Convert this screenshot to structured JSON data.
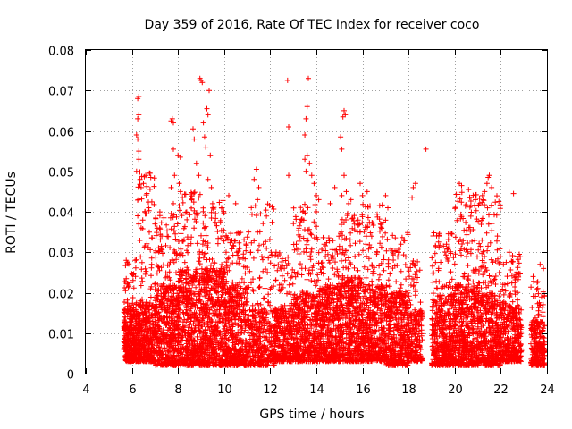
{
  "chart_data": {
    "type": "scatter",
    "title": "Day 359 of 2016, Rate Of TEC Index for receiver coco",
    "xlabel": "GPS time / hours",
    "ylabel": "ROTI / TECUs",
    "xlim": [
      4,
      24
    ],
    "ylim": [
      0,
      0.08
    ],
    "xticks": [
      4,
      6,
      8,
      10,
      12,
      14,
      16,
      18,
      20,
      22,
      24
    ],
    "yticks": [
      0,
      0.01,
      0.02,
      0.03,
      0.04,
      0.05,
      0.06,
      0.07,
      0.08
    ],
    "xtick_labels": [
      "4",
      "6",
      "8",
      "10",
      "12",
      "14",
      "16",
      "18",
      "20",
      "22",
      "24"
    ],
    "ytick_labels": [
      "0",
      "0.01",
      "0.02",
      "0.03",
      "0.04",
      "0.05",
      "0.06",
      "0.07",
      "0.08"
    ],
    "grid": true,
    "marker": "+",
    "color": "#ff0000",
    "series": [
      {
        "name": "ROTI",
        "density_profile": [
          {
            "x_start": 5.65,
            "x_end": 6.2,
            "count": 320,
            "y_min": 0.003,
            "y_bulk": 0.016,
            "y_tail": 0.029
          },
          {
            "x_start": 6.2,
            "x_end": 7.0,
            "count": 420,
            "y_min": 0.003,
            "y_bulk": 0.018,
            "y_tail": 0.05
          },
          {
            "x_start": 7.0,
            "x_end": 8.0,
            "count": 520,
            "y_min": 0.002,
            "y_bulk": 0.022,
            "y_tail": 0.04
          },
          {
            "x_start": 8.0,
            "x_end": 9.0,
            "count": 520,
            "y_min": 0.002,
            "y_bulk": 0.026,
            "y_tail": 0.045
          },
          {
            "x_start": 9.0,
            "x_end": 10.0,
            "count": 520,
            "y_min": 0.002,
            "y_bulk": 0.026,
            "y_tail": 0.043
          },
          {
            "x_start": 10.0,
            "x_end": 11.0,
            "count": 500,
            "y_min": 0.002,
            "y_bulk": 0.022,
            "y_tail": 0.035
          },
          {
            "x_start": 11.0,
            "x_end": 12.2,
            "count": 380,
            "y_min": 0.002,
            "y_bulk": 0.016,
            "y_tail": 0.042
          },
          {
            "x_start": 12.2,
            "x_end": 13.0,
            "count": 330,
            "y_min": 0.003,
            "y_bulk": 0.016,
            "y_tail": 0.03
          },
          {
            "x_start": 13.0,
            "x_end": 14.0,
            "count": 450,
            "y_min": 0.003,
            "y_bulk": 0.02,
            "y_tail": 0.042
          },
          {
            "x_start": 14.0,
            "x_end": 15.0,
            "count": 480,
            "y_min": 0.003,
            "y_bulk": 0.022,
            "y_tail": 0.035
          },
          {
            "x_start": 15.0,
            "x_end": 16.0,
            "count": 500,
            "y_min": 0.003,
            "y_bulk": 0.024,
            "y_tail": 0.04
          },
          {
            "x_start": 16.0,
            "x_end": 17.0,
            "count": 470,
            "y_min": 0.003,
            "y_bulk": 0.022,
            "y_tail": 0.042
          },
          {
            "x_start": 17.0,
            "x_end": 18.0,
            "count": 450,
            "y_min": 0.002,
            "y_bulk": 0.02,
            "y_tail": 0.035
          },
          {
            "x_start": 18.0,
            "x_end": 18.6,
            "count": 200,
            "y_min": 0.003,
            "y_bulk": 0.016,
            "y_tail": 0.028
          },
          {
            "x_start": 19.0,
            "x_end": 20.0,
            "count": 470,
            "y_min": 0.002,
            "y_bulk": 0.02,
            "y_tail": 0.035
          },
          {
            "x_start": 20.0,
            "x_end": 21.0,
            "count": 500,
            "y_min": 0.002,
            "y_bulk": 0.022,
            "y_tail": 0.045
          },
          {
            "x_start": 21.0,
            "x_end": 22.0,
            "count": 480,
            "y_min": 0.002,
            "y_bulk": 0.02,
            "y_tail": 0.045
          },
          {
            "x_start": 22.0,
            "x_end": 22.9,
            "count": 380,
            "y_min": 0.003,
            "y_bulk": 0.017,
            "y_tail": 0.03
          },
          {
            "x_start": 23.3,
            "x_end": 23.9,
            "count": 260,
            "y_min": 0.002,
            "y_bulk": 0.013,
            "y_tail": 0.024
          }
        ],
        "outliers": [
          [
            5.75,
            0.028
          ],
          [
            5.8,
            0.0275
          ],
          [
            5.75,
            0.0235
          ],
          [
            6.25,
            0.068
          ],
          [
            6.3,
            0.0685
          ],
          [
            6.3,
            0.064
          ],
          [
            6.25,
            0.063
          ],
          [
            6.2,
            0.059
          ],
          [
            6.25,
            0.058
          ],
          [
            6.3,
            0.055
          ],
          [
            6.3,
            0.053
          ],
          [
            6.2,
            0.05
          ],
          [
            6.35,
            0.048
          ],
          [
            6.4,
            0.046
          ],
          [
            6.5,
            0.047
          ],
          [
            6.6,
            0.049
          ],
          [
            6.3,
            0.043
          ],
          [
            6.25,
            0.039
          ],
          [
            6.4,
            0.036
          ],
          [
            7.0,
            0.037
          ],
          [
            7.2,
            0.036
          ],
          [
            7.3,
            0.034
          ],
          [
            7.7,
            0.0625
          ],
          [
            7.8,
            0.062
          ],
          [
            7.75,
            0.063
          ],
          [
            7.8,
            0.0555
          ],
          [
            7.85,
            0.049
          ],
          [
            7.7,
            0.046
          ],
          [
            7.8,
            0.042
          ],
          [
            8.0,
            0.054
          ],
          [
            8.1,
            0.0535
          ],
          [
            8.05,
            0.047
          ],
          [
            8.1,
            0.045
          ],
          [
            8.7,
            0.058
          ],
          [
            8.65,
            0.0605
          ],
          [
            8.8,
            0.052
          ],
          [
            8.9,
            0.049
          ],
          [
            8.95,
            0.073
          ],
          [
            9.0,
            0.0725
          ],
          [
            9.05,
            0.072
          ],
          [
            9.1,
            0.062
          ],
          [
            9.15,
            0.0585
          ],
          [
            9.2,
            0.056
          ],
          [
            9.25,
            0.0655
          ],
          [
            9.3,
            0.064
          ],
          [
            9.35,
            0.07
          ],
          [
            9.4,
            0.054
          ],
          [
            9.3,
            0.048
          ],
          [
            9.45,
            0.046
          ],
          [
            9.5,
            0.042
          ],
          [
            10.2,
            0.044
          ],
          [
            10.5,
            0.042
          ],
          [
            11.3,
            0.048
          ],
          [
            11.4,
            0.0505
          ],
          [
            11.5,
            0.046
          ],
          [
            11.45,
            0.043
          ],
          [
            12.75,
            0.0725
          ],
          [
            12.8,
            0.061
          ],
          [
            12.8,
            0.049
          ],
          [
            13.65,
            0.073
          ],
          [
            13.6,
            0.066
          ],
          [
            13.55,
            0.063
          ],
          [
            13.5,
            0.059
          ],
          [
            13.6,
            0.054
          ],
          [
            13.5,
            0.053
          ],
          [
            13.7,
            0.052
          ],
          [
            13.55,
            0.05
          ],
          [
            13.8,
            0.049
          ],
          [
            13.9,
            0.047
          ],
          [
            14.0,
            0.044
          ],
          [
            14.1,
            0.043
          ],
          [
            14.0,
            0.04
          ],
          [
            14.6,
            0.042
          ],
          [
            14.8,
            0.046
          ],
          [
            15.05,
            0.0585
          ],
          [
            15.1,
            0.0555
          ],
          [
            15.2,
            0.065
          ],
          [
            15.25,
            0.064
          ],
          [
            15.15,
            0.0635
          ],
          [
            15.2,
            0.049
          ],
          [
            15.3,
            0.045
          ],
          [
            15.1,
            0.044
          ],
          [
            15.4,
            0.042
          ],
          [
            15.5,
            0.043
          ],
          [
            15.9,
            0.047
          ],
          [
            16.0,
            0.044
          ],
          [
            16.2,
            0.045
          ],
          [
            17.0,
            0.044
          ],
          [
            17.1,
            0.041
          ],
          [
            18.2,
            0.046
          ],
          [
            18.3,
            0.047
          ],
          [
            18.15,
            0.0435
          ],
          [
            18.75,
            0.0555
          ],
          [
            20.2,
            0.047
          ],
          [
            20.3,
            0.0465
          ],
          [
            20.6,
            0.0455
          ],
          [
            20.7,
            0.0415
          ],
          [
            20.9,
            0.043
          ],
          [
            21.2,
            0.044
          ],
          [
            21.3,
            0.045
          ],
          [
            21.4,
            0.047
          ],
          [
            21.45,
            0.0485
          ],
          [
            21.5,
            0.049
          ],
          [
            21.6,
            0.046
          ],
          [
            22.55,
            0.0445
          ],
          [
            22.7,
            0.029
          ],
          [
            22.8,
            0.0295
          ],
          [
            23.4,
            0.024
          ],
          [
            23.7,
            0.027
          ],
          [
            23.85,
            0.026
          ]
        ]
      }
    ]
  }
}
